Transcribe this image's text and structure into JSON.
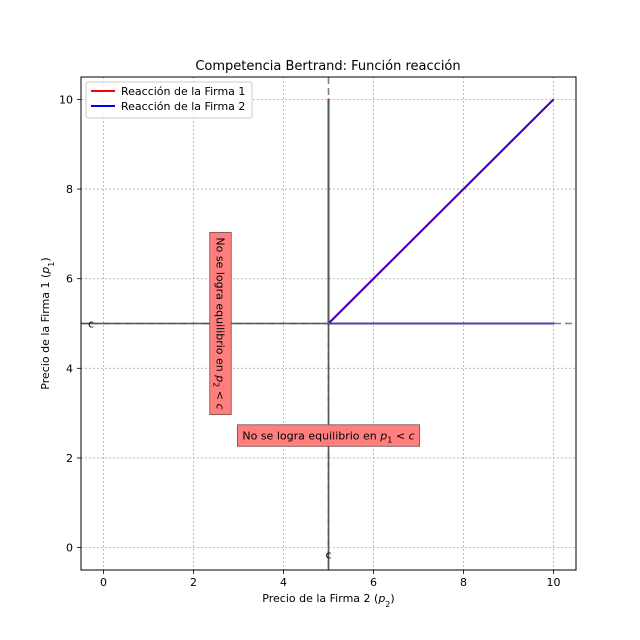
{
  "chart_data": {
    "type": "line",
    "title": "Competencia Bertrand: Función reacción",
    "xlabel": {
      "prefix": "Precio de la Firma 2 (",
      "var": "p",
      "sub": "2",
      "suffix": ")"
    },
    "ylabel": {
      "prefix": "Precio de la Firma 1 (",
      "var": "p",
      "sub": "1",
      "suffix": ")"
    },
    "xlim": [
      -0.5,
      10.5
    ],
    "ylim": [
      -0.5,
      10.5
    ],
    "xticks": [
      0,
      2,
      4,
      6,
      8,
      10
    ],
    "yticks": [
      0,
      2,
      4,
      6,
      8,
      10
    ],
    "grid": true,
    "legend_position": "top-left",
    "series": [
      {
        "name": "Reacción de la Firma 1",
        "color": "#ff0000",
        "points": [
          [
            5,
            5
          ],
          [
            5,
            10
          ],
          [
            5,
            5
          ],
          [
            10,
            10
          ]
        ]
      },
      {
        "name": "Reacción de la Firma 2",
        "color": "#0000ff",
        "points": [
          [
            5,
            5
          ],
          [
            10,
            5
          ],
          [
            5,
            5
          ],
          [
            10,
            10
          ]
        ]
      }
    ],
    "cost": {
      "value": 5,
      "x_label": "c",
      "y_label": "c",
      "line_color": "#555555",
      "vertical_range": [
        -0.5,
        10.0
      ],
      "horizontal_range": [
        -0.5,
        10.0
      ]
    },
    "annotations": [
      {
        "id": "p1",
        "prefix": "No se logra equilibrio en ",
        "var": "p",
        "sub": "1",
        "rel": " < ",
        "tail": "c",
        "x": 5,
        "y": 2.5,
        "rotation": 0,
        "box_color": "#ff7f7f"
      },
      {
        "id": "p2",
        "prefix": "No se logra equilibrio en ",
        "var": "p",
        "sub": "2",
        "rel": " < ",
        "tail": "c",
        "x": 2.6,
        "y": 5,
        "rotation": 90,
        "box_color": "#ff7f7f"
      }
    ]
  }
}
